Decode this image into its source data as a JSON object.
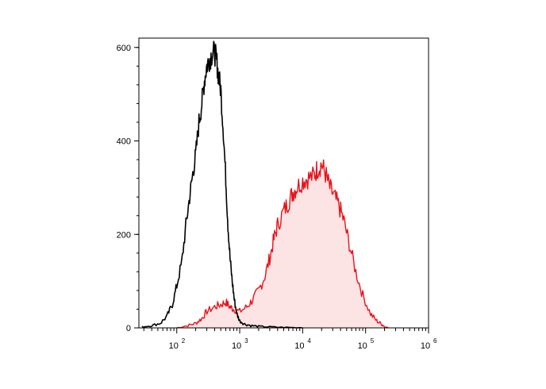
{
  "chart_data": {
    "type": "area",
    "title": "",
    "xlabel": "",
    "ylabel": "",
    "x_scale": "log",
    "xlim": [
      25,
      1000000
    ],
    "ylim": [
      0,
      620
    ],
    "x_ticks": [
      {
        "value": 100,
        "base": "10",
        "exp": "2"
      },
      {
        "value": 1000,
        "base": "10",
        "exp": "3"
      },
      {
        "value": 10000,
        "base": "10",
        "exp": "4"
      },
      {
        "value": 100000,
        "base": "10",
        "exp": "5"
      },
      {
        "value": 1000000,
        "base": "10",
        "exp": "6"
      }
    ],
    "y_ticks": [
      {
        "value": 0,
        "label": "0"
      },
      {
        "value": 200,
        "label": "200"
      },
      {
        "value": 400,
        "label": "400"
      },
      {
        "value": 600,
        "label": "600"
      }
    ],
    "grid": false,
    "legend": "none",
    "series": [
      {
        "color": "#000000",
        "fill": "none",
        "points": [
          [
            28,
            2
          ],
          [
            40,
            5
          ],
          [
            55,
            10
          ],
          [
            70,
            25
          ],
          [
            85,
            50
          ],
          [
            100,
            90
          ],
          [
            120,
            140
          ],
          [
            140,
            220
          ],
          [
            160,
            280
          ],
          [
            180,
            330
          ],
          [
            200,
            370
          ],
          [
            225,
            440
          ],
          [
            250,
            480
          ],
          [
            275,
            530
          ],
          [
            300,
            560
          ],
          [
            330,
            575
          ],
          [
            360,
            585
          ],
          [
            400,
            590
          ],
          [
            430,
            570
          ],
          [
            460,
            540
          ],
          [
            500,
            510
          ],
          [
            550,
            420
          ],
          [
            600,
            320
          ],
          [
            650,
            220
          ],
          [
            700,
            150
          ],
          [
            760,
            100
          ],
          [
            820,
            60
          ],
          [
            900,
            30
          ],
          [
            1000,
            15
          ],
          [
            1200,
            8
          ],
          [
            1500,
            5
          ],
          [
            2000,
            3
          ],
          [
            3000,
            2
          ],
          [
            5000,
            1
          ],
          [
            10000,
            0
          ]
        ]
      },
      {
        "color": "#e8131a",
        "fill": "#fce4e4",
        "points": [
          [
            100,
            0
          ],
          [
            150,
            5
          ],
          [
            200,
            10
          ],
          [
            250,
            20
          ],
          [
            300,
            35
          ],
          [
            400,
            45
          ],
          [
            500,
            50
          ],
          [
            600,
            55
          ],
          [
            700,
            45
          ],
          [
            800,
            40
          ],
          [
            1000,
            35
          ],
          [
            1300,
            45
          ],
          [
            1600,
            60
          ],
          [
            2000,
            80
          ],
          [
            2500,
            110
          ],
          [
            3000,
            150
          ],
          [
            3500,
            190
          ],
          [
            4000,
            220
          ],
          [
            5000,
            250
          ],
          [
            6000,
            270
          ],
          [
            7000,
            290
          ],
          [
            8000,
            300
          ],
          [
            10000,
            315
          ],
          [
            12000,
            320
          ],
          [
            15000,
            325
          ],
          [
            17000,
            340
          ],
          [
            20000,
            350
          ],
          [
            23000,
            330
          ],
          [
            27000,
            300
          ],
          [
            32000,
            280
          ],
          [
            38000,
            260
          ],
          [
            45000,
            230
          ],
          [
            55000,
            180
          ],
          [
            70000,
            120
          ],
          [
            90000,
            70
          ],
          [
            120000,
            30
          ],
          [
            150000,
            15
          ],
          [
            180000,
            8
          ],
          [
            200000,
            3
          ],
          [
            230000,
            0
          ]
        ]
      }
    ]
  }
}
